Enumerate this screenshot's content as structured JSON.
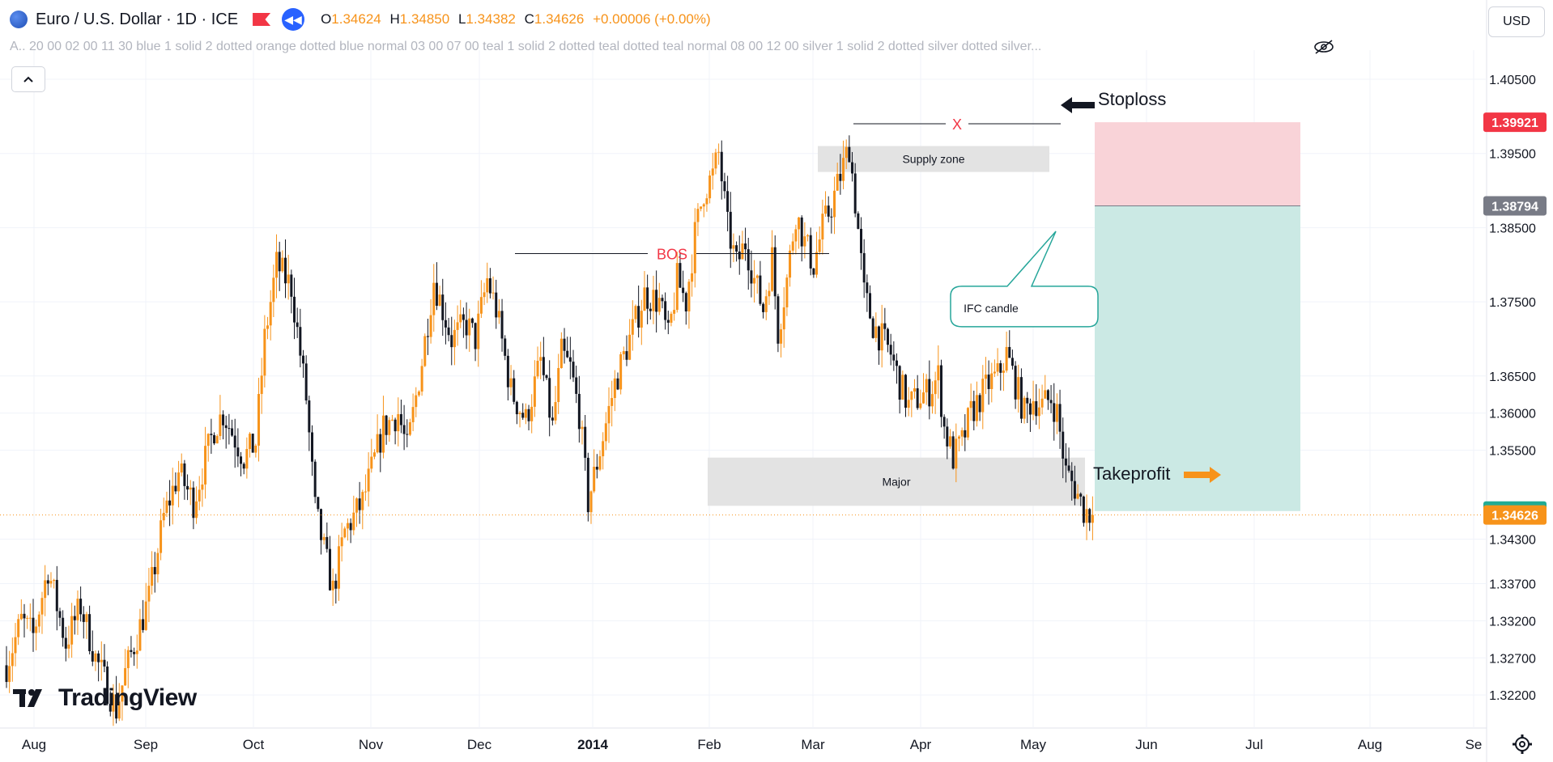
{
  "header": {
    "symbol": "Euro / U.S. Dollar · 1D · ICE",
    "ohlc": [
      {
        "key": "O",
        "value": "1.34624"
      },
      {
        "key": "H",
        "value": "1.34850"
      },
      {
        "key": "L",
        "value": "1.34382"
      },
      {
        "key": "C",
        "value": "1.34626"
      },
      {
        "key": "",
        "value": "+0.00006 (+0.00%)"
      }
    ],
    "indicator_line": "A.. 20 00 02 00 11 30 blue 1 solid 2 dotted orange dotted blue normal 03 00 07 00 teal 1 solid 2 dotted teal dotted teal normal 08 00 12 00 silver 1 solid 2 dotted silver dotted silver...",
    "currency": "USD",
    "logo_text": "TradingView"
  },
  "colors": {
    "up": "#f7931a",
    "down": "#131722",
    "annotation_red": "#f23645",
    "stop_zone": "#f9d3d8",
    "target_zone": "#cbe9e4",
    "zone_gray": "#e3e3e3",
    "teal_label": "#22ab94",
    "gray_label": "#787b86",
    "arrow_orange": "#f7931a",
    "callout_border": "#26a69a"
  },
  "chart_data": {
    "type": "candlestick",
    "symbol": "EURUSD",
    "timeframe": "1D",
    "x_axis": {
      "labels": [
        "Aug",
        "Sep",
        "Oct",
        "Nov",
        "Dec",
        "2014",
        "Feb",
        "Mar",
        "Apr",
        "May",
        "Jun",
        "Jul",
        "Aug",
        "Se"
      ],
      "bold_label": "2014"
    },
    "y_axis": {
      "ticks": [
        "1.40500",
        "1.39500",
        "1.38500",
        "1.37500",
        "1.36500",
        "1.36000",
        "1.35500",
        "1.34300",
        "1.33700",
        "1.33200",
        "1.32700",
        "1.32200"
      ],
      "tick_values": [
        1.405,
        1.395,
        1.385,
        1.375,
        1.365,
        1.36,
        1.355,
        1.343,
        1.337,
        1.332,
        1.327,
        1.322
      ],
      "range": [
        1.3185,
        1.4075
      ]
    },
    "price_labels": [
      {
        "value": "1.39921",
        "color": "#f23645"
      },
      {
        "value": "1.38794",
        "color": "#787b86"
      },
      {
        "value": "1.34679",
        "color": "#22ab94"
      },
      {
        "value": "1.34626",
        "color": "#f7931a"
      }
    ],
    "last_price": 1.34626,
    "close_path": [
      [
        1.326,
        0
      ],
      [
        1.332,
        5
      ],
      [
        1.33,
        9
      ],
      [
        1.339,
        14
      ],
      [
        1.329,
        20
      ],
      [
        1.334,
        25
      ],
      [
        1.327,
        30
      ],
      [
        1.32,
        37
      ],
      [
        1.325,
        40
      ],
      [
        1.33,
        44
      ],
      [
        1.335,
        48
      ],
      [
        1.346,
        53
      ],
      [
        1.352,
        58
      ],
      [
        1.348,
        63
      ],
      [
        1.358,
        70
      ],
      [
        1.36,
        73
      ],
      [
        1.354,
        80
      ],
      [
        1.356,
        84
      ],
      [
        1.37,
        87
      ],
      [
        1.38,
        91
      ],
      [
        1.377,
        96
      ],
      [
        1.362,
        101
      ],
      [
        1.347,
        104
      ],
      [
        1.336,
        110
      ],
      [
        1.344,
        114
      ],
      [
        1.348,
        120
      ],
      [
        1.358,
        127
      ],
      [
        1.36,
        132
      ],
      [
        1.355,
        135
      ],
      [
        1.367,
        140
      ],
      [
        1.378,
        144
      ],
      [
        1.37,
        150
      ],
      [
        1.372,
        155
      ],
      [
        1.37,
        158
      ],
      [
        1.378,
        162
      ],
      [
        1.374,
        165
      ],
      [
        1.363,
        170
      ],
      [
        1.359,
        175
      ],
      [
        1.367,
        180
      ],
      [
        1.358,
        184
      ],
      [
        1.368,
        187
      ],
      [
        1.366,
        190
      ],
      [
        1.36,
        193
      ],
      [
        1.348,
        196
      ],
      [
        1.355,
        200
      ],
      [
        1.364,
        205
      ],
      [
        1.37,
        210
      ],
      [
        1.376,
        215
      ],
      [
        1.375,
        220
      ],
      [
        1.37,
        223
      ],
      [
        1.378,
        226
      ],
      [
        1.375,
        229
      ],
      [
        1.384,
        232
      ],
      [
        1.39,
        235
      ],
      [
        1.392,
        238
      ],
      [
        1.395,
        240
      ],
      [
        1.385,
        243
      ],
      [
        1.38,
        246
      ],
      [
        1.383,
        249
      ],
      [
        1.378,
        252
      ],
      [
        1.374,
        255
      ],
      [
        1.381,
        258
      ],
      [
        1.371,
        260
      ],
      [
        1.378,
        263
      ],
      [
        1.387,
        266
      ],
      [
        1.383,
        269
      ],
      [
        1.38,
        272
      ],
      [
        1.385,
        275
      ],
      [
        1.388,
        278
      ],
      [
        1.392,
        281
      ],
      [
        1.396,
        284
      ],
      [
        1.3847,
        287
      ],
      [
        1.376,
        289
      ],
      [
        1.372,
        292
      ],
      [
        1.37,
        295
      ],
      [
        1.368,
        298
      ],
      [
        1.364,
        301
      ],
      [
        1.361,
        304
      ],
      [
        1.362,
        307
      ],
      [
        1.363,
        311
      ],
      [
        1.365,
        314
      ],
      [
        1.358,
        316
      ],
      [
        1.354,
        319
      ],
      [
        1.356,
        322
      ],
      [
        1.36,
        325
      ],
      [
        1.362,
        328
      ],
      [
        1.364,
        331
      ],
      [
        1.365,
        334
      ],
      [
        1.368,
        337
      ],
      [
        1.364,
        340
      ],
      [
        1.36,
        343
      ],
      [
        1.362,
        346
      ],
      [
        1.361,
        349
      ],
      [
        1.362,
        352
      ],
      [
        1.36,
        354
      ],
      [
        1.352,
        357
      ],
      [
        1.35,
        360
      ],
      [
        1.347,
        363
      ],
      [
        1.3463,
        366
      ]
    ],
    "annotations": [
      {
        "type": "label",
        "text": "BOS",
        "color": "#f23645",
        "price": 1.3815
      },
      {
        "type": "label",
        "text": "X",
        "color": "#f23645",
        "price": 1.399
      },
      {
        "type": "zone",
        "text": "Supply zone",
        "top": 1.396,
        "bottom": 1.3925
      },
      {
        "type": "zone",
        "text": "Major",
        "top": 1.354,
        "bottom": 1.3475
      },
      {
        "type": "callout",
        "text": "IFC candle",
        "price": 1.3747
      },
      {
        "type": "label",
        "text": "Stoploss",
        "price": 1.4023
      },
      {
        "type": "label",
        "text": "Takeprofit",
        "price": 1.3518
      },
      {
        "type": "position",
        "stop": 1.39921,
        "entry": 1.38794,
        "target": 1.34679
      }
    ]
  }
}
